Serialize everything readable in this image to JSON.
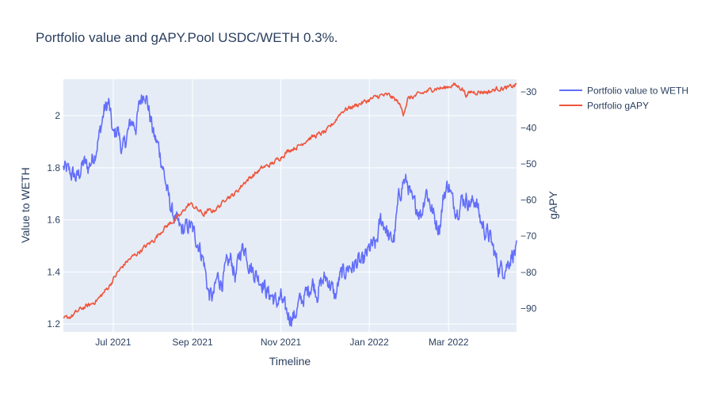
{
  "chart_data": {
    "type": "line",
    "title": "Portfolio value and gAPY.Pool USDC/WETH 0.3%.",
    "xlabel": "Timeline",
    "ylabel_left": "Value to WETH",
    "ylabel_right": "gAPY",
    "x_ticks": [
      "Jul 2021",
      "Sep 2021",
      "Nov 2021",
      "Jan 2022",
      "Mar 2022"
    ],
    "ylim_left": [
      1.17,
      2.14
    ],
    "ylim_right": [
      -96.5,
      -26.5
    ],
    "yticks_left": [
      1.2,
      1.4,
      1.6,
      1.8,
      2
    ],
    "yticks_left_labels": [
      "1.2",
      "1.4",
      "1.6",
      "1.8",
      "2"
    ],
    "yticks_right": [
      -90,
      -80,
      -70,
      -60,
      -50,
      -40,
      -30
    ],
    "yticks_right_labels": [
      "−90",
      "−80",
      "−70",
      "−60",
      "−50",
      "−40",
      "−30"
    ],
    "grid": true,
    "legend_position": "top-right",
    "colors": {
      "value": "#636efa",
      "gapy": "#ef553b",
      "plot_bg": "#e5ecf6",
      "text": "#2a3f5f"
    },
    "series": [
      {
        "name": "Portfolio value to WETH",
        "axis": "left",
        "x": [
          0,
          0.015,
          0.03,
          0.045,
          0.055,
          0.07,
          0.08,
          0.09,
          0.1,
          0.11,
          0.12,
          0.13,
          0.14,
          0.15,
          0.16,
          0.17,
          0.18,
          0.19,
          0.2,
          0.21,
          0.22,
          0.23,
          0.24,
          0.255,
          0.265,
          0.28,
          0.29,
          0.3,
          0.31,
          0.32,
          0.33,
          0.34,
          0.35,
          0.36,
          0.37,
          0.38,
          0.39,
          0.4,
          0.41,
          0.42,
          0.43,
          0.44,
          0.45,
          0.46,
          0.47,
          0.48,
          0.49,
          0.5,
          0.51,
          0.52,
          0.53,
          0.54,
          0.55,
          0.56,
          0.57,
          0.58,
          0.59,
          0.6,
          0.61,
          0.62,
          0.63,
          0.64,
          0.65,
          0.66,
          0.67,
          0.68,
          0.69,
          0.7,
          0.71,
          0.72,
          0.73,
          0.74,
          0.75,
          0.76,
          0.77,
          0.78,
          0.79,
          0.8,
          0.81,
          0.82,
          0.83,
          0.84,
          0.85,
          0.86,
          0.87,
          0.88,
          0.89,
          0.9,
          0.91,
          0.92,
          0.93,
          0.94,
          0.95,
          0.96,
          0.97,
          0.98,
          0.99,
          1.0
        ],
        "values": [
          1.8,
          1.78,
          1.76,
          1.82,
          1.8,
          1.86,
          1.93,
          2.02,
          2.05,
          1.92,
          1.95,
          1.86,
          1.92,
          1.98,
          1.96,
          2.06,
          2.1,
          2.01,
          1.92,
          1.88,
          1.8,
          1.7,
          1.63,
          1.57,
          1.56,
          1.58,
          1.54,
          1.5,
          1.44,
          1.32,
          1.3,
          1.38,
          1.36,
          1.42,
          1.45,
          1.38,
          1.48,
          1.5,
          1.43,
          1.4,
          1.38,
          1.36,
          1.32,
          1.31,
          1.28,
          1.3,
          1.25,
          1.23,
          1.23,
          1.28,
          1.3,
          1.33,
          1.36,
          1.32,
          1.36,
          1.38,
          1.35,
          1.3,
          1.38,
          1.4,
          1.42,
          1.42,
          1.44,
          1.43,
          1.47,
          1.5,
          1.5,
          1.6,
          1.58,
          1.52,
          1.53,
          1.68,
          1.75,
          1.74,
          1.66,
          1.65,
          1.62,
          1.72,
          1.66,
          1.6,
          1.57,
          1.7,
          1.74,
          1.66,
          1.64,
          1.68,
          1.68,
          1.66,
          1.68,
          1.6,
          1.56,
          1.54,
          1.48,
          1.42,
          1.41,
          1.43,
          1.47,
          1.48
        ]
      },
      {
        "name": "Portfolio gAPY",
        "axis": "right",
        "x": [
          0,
          0.02,
          0.04,
          0.06,
          0.08,
          0.1,
          0.12,
          0.14,
          0.16,
          0.18,
          0.2,
          0.22,
          0.24,
          0.26,
          0.27,
          0.28,
          0.29,
          0.3,
          0.31,
          0.32,
          0.33,
          0.34,
          0.35,
          0.36,
          0.37,
          0.38,
          0.4,
          0.42,
          0.44,
          0.46,
          0.48,
          0.5,
          0.52,
          0.54,
          0.56,
          0.58,
          0.6,
          0.61,
          0.62,
          0.64,
          0.66,
          0.68,
          0.7,
          0.72,
          0.74,
          0.75,
          0.76,
          0.78,
          0.8,
          0.82,
          0.84,
          0.86,
          0.88,
          0.89,
          0.9,
          0.92,
          0.94,
          0.96,
          0.98,
          1.0
        ],
        "values": [
          -93,
          -92,
          -90,
          -89,
          -87,
          -84,
          -80,
          -77,
          -75,
          -73,
          -71,
          -68,
          -66,
          -64,
          -62,
          -61,
          -62,
          -63,
          -64,
          -63,
          -63,
          -62,
          -61,
          -59,
          -59,
          -58,
          -55,
          -53,
          -51,
          -50,
          -48,
          -46,
          -45,
          -43,
          -42,
          -41,
          -38,
          -36,
          -35,
          -34,
          -33,
          -32,
          -31,
          -31,
          -33,
          -36,
          -32,
          -31,
          -30,
          -29,
          -29,
          -28,
          -29,
          -31,
          -30,
          -30,
          -30,
          -29,
          -29,
          -28
        ]
      }
    ]
  }
}
